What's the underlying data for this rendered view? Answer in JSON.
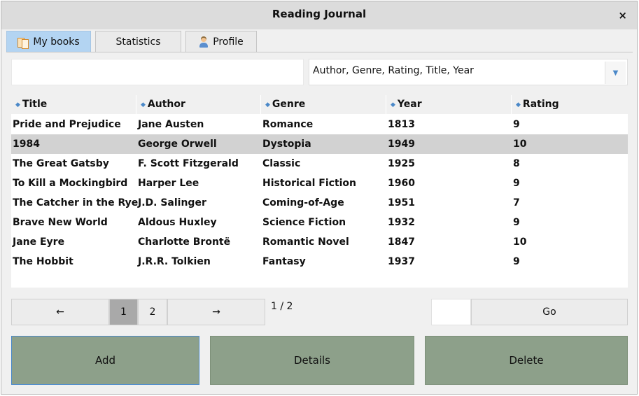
{
  "window": {
    "title": "Reading Journal",
    "close_symbol": "×"
  },
  "tabs": [
    {
      "label": "My books",
      "icon": "book-icon",
      "active": true
    },
    {
      "label": "Statistics",
      "icon": "",
      "active": false
    },
    {
      "label": "Profile",
      "icon": "user-icon",
      "active": false
    }
  ],
  "filter": {
    "value": "",
    "placeholder": ""
  },
  "sort": {
    "value": "Author, Genre, Rating, Title, Year",
    "dropdown_symbol": "▼"
  },
  "table": {
    "columns": [
      "Title",
      "Author",
      "Genre",
      "Year",
      "Rating"
    ],
    "sort_symbol": "◆",
    "rows": [
      [
        "Pride and Prejudice",
        "Jane Austen",
        "Romance",
        "1813",
        "9"
      ],
      [
        "1984",
        "George Orwell",
        "Dystopia",
        "1949",
        "10"
      ],
      [
        "The Great Gatsby",
        "F. Scott Fitzgerald",
        "Classic",
        "1925",
        "8"
      ],
      [
        "To Kill a Mockingbird",
        "Harper Lee",
        "Historical Fiction",
        "1960",
        "9"
      ],
      [
        "The Catcher in the Rye",
        "J.D. Salinger",
        "Coming-of-Age",
        "1951",
        "7"
      ],
      [
        "Brave New World",
        "Aldous Huxley",
        "Science Fiction",
        "1932",
        "9"
      ],
      [
        "Jane Eyre",
        "Charlotte Brontë",
        "Romantic Novel",
        "1847",
        "10"
      ],
      [
        "The Hobbit",
        "J.R.R. Tolkien",
        "Fantasy",
        "1937",
        "9"
      ]
    ],
    "selected_row": 1
  },
  "pager": {
    "prev": "←",
    "next": "→",
    "pages": [
      "1",
      "2"
    ],
    "current_page": "1",
    "indicator": "1 / 2",
    "goto_value": "",
    "go_label": "Go"
  },
  "actions": {
    "add": "Add",
    "details": "Details",
    "delete": "Delete"
  },
  "colors": {
    "accent": "#b3d4f2",
    "action_button": "#8da08a",
    "selected_row": "#d2d2d2"
  }
}
